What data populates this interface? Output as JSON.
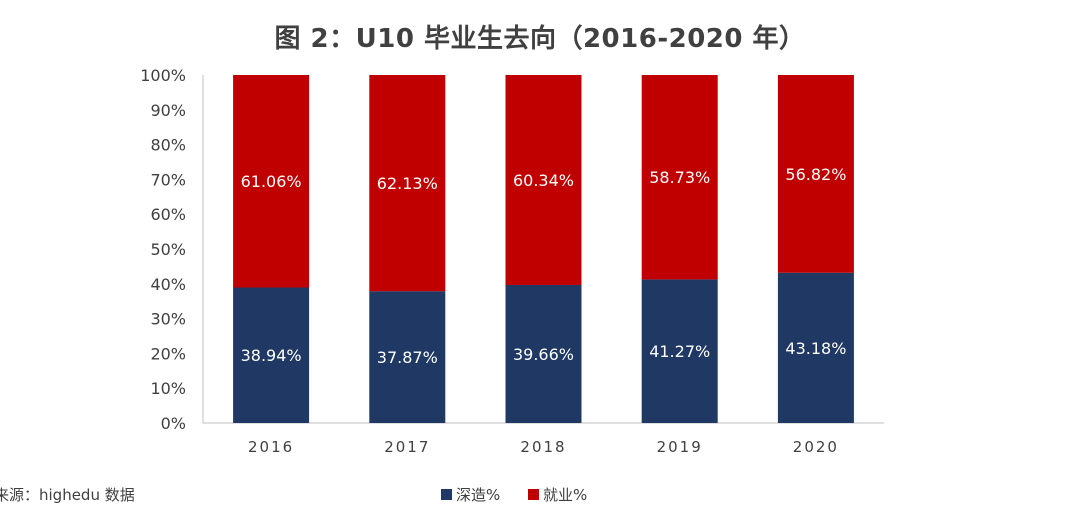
{
  "chart_data": {
    "type": "bar",
    "stacked": true,
    "title": "图 2：U10 毕业生去向（2016-2020 年）",
    "categories": [
      "2016",
      "2017",
      "2018",
      "2019",
      "2020"
    ],
    "series": [
      {
        "name": "深造%",
        "values": [
          38.94,
          37.87,
          39.66,
          41.27,
          43.18
        ],
        "color": "#1f3864",
        "labels": [
          "38.94%",
          "37.87%",
          "39.66%",
          "41.27%",
          "43.18%"
        ]
      },
      {
        "name": "就业%",
        "values": [
          61.06,
          62.13,
          60.34,
          58.73,
          56.82
        ],
        "color": "#c00000",
        "labels": [
          "61.06%",
          "62.13%",
          "60.34%",
          "58.73%",
          "56.82%"
        ]
      }
    ],
    "ylim": [
      0,
      100
    ],
    "yticks": [
      "0%",
      "10%",
      "20%",
      "30%",
      "40%",
      "50%",
      "60%",
      "70%",
      "80%",
      "90%",
      "100%"
    ],
    "legend_position": "bottom",
    "grid": false
  },
  "source_note": "来源：highedu 数据"
}
